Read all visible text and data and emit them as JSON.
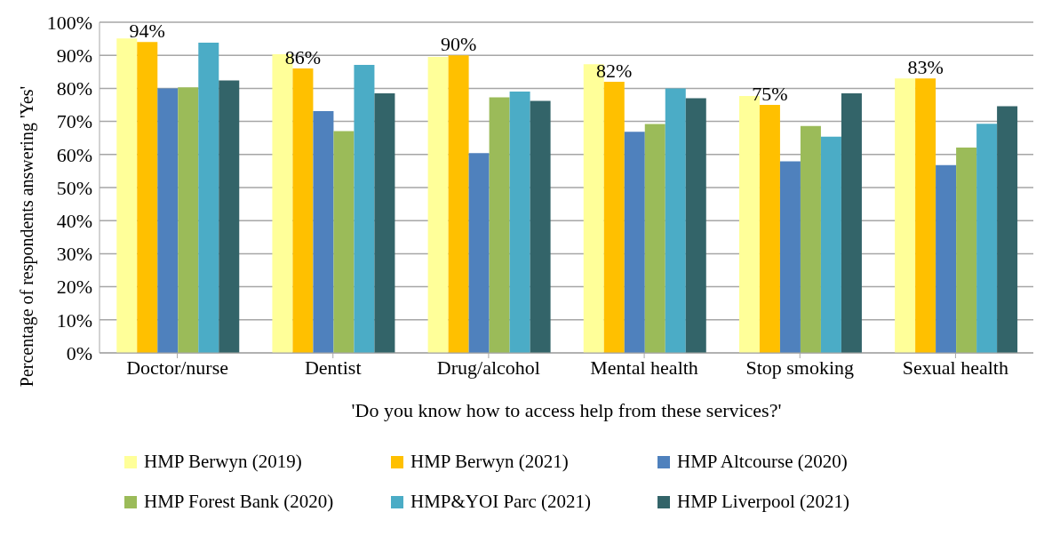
{
  "chart_data": {
    "type": "bar",
    "xlabel": "'Do you know how to access help from these services?'",
    "ylabel": "Percentage of respondents answering 'Yes'",
    "categories": [
      "Doctor/nurse",
      "Dentist",
      "Drug/alcohol",
      "Mental health",
      "Stop smoking",
      "Sexual health"
    ],
    "series": [
      {
        "name": "HMP Berwyn (2019)",
        "color": "#ffff99",
        "values": [
          95.1,
          90.3,
          89.5,
          87.3,
          77.7,
          83.0
        ]
      },
      {
        "name": "HMP Berwyn (2021)",
        "color": "#ffc000",
        "values": [
          94,
          86,
          90,
          82,
          75,
          83
        ],
        "value_labels": [
          "94%",
          "86%",
          "90%",
          "82%",
          "75%",
          "83%"
        ]
      },
      {
        "name": "HMP Altcourse (2020)",
        "color": "#4f81bd",
        "values": [
          80.0,
          73.1,
          60.4,
          66.9,
          57.9,
          56.8
        ]
      },
      {
        "name": "HMP Forest Bank (2020)",
        "color": "#9bbb59",
        "values": [
          80.3,
          67.1,
          77.3,
          69.2,
          68.6,
          62.1
        ]
      },
      {
        "name": "HMP&YOI Parc (2021)",
        "color": "#4bacc6",
        "values": [
          93.8,
          87.1,
          79.0,
          80.0,
          65.4,
          69.3
        ]
      },
      {
        "name": "HMP Liverpool (2021)",
        "color": "#336469",
        "values": [
          82.4,
          78.5,
          76.2,
          77.0,
          78.5,
          74.6
        ]
      }
    ],
    "ylim": [
      0,
      100
    ],
    "yticks": [
      {
        "value": 0,
        "label": "0%"
      },
      {
        "value": 10,
        "label": "10%"
      },
      {
        "value": 20,
        "label": "20%"
      },
      {
        "value": 30,
        "label": "30%"
      },
      {
        "value": 40,
        "label": "40%"
      },
      {
        "value": 50,
        "label": "50%"
      },
      {
        "value": 60,
        "label": "60%"
      },
      {
        "value": 70,
        "label": "70%"
      },
      {
        "value": 80,
        "label": "80%"
      },
      {
        "value": 90,
        "label": "90%"
      },
      {
        "value": 100,
        "label": "100%"
      }
    ],
    "grid": "y",
    "legend": "bottom"
  }
}
